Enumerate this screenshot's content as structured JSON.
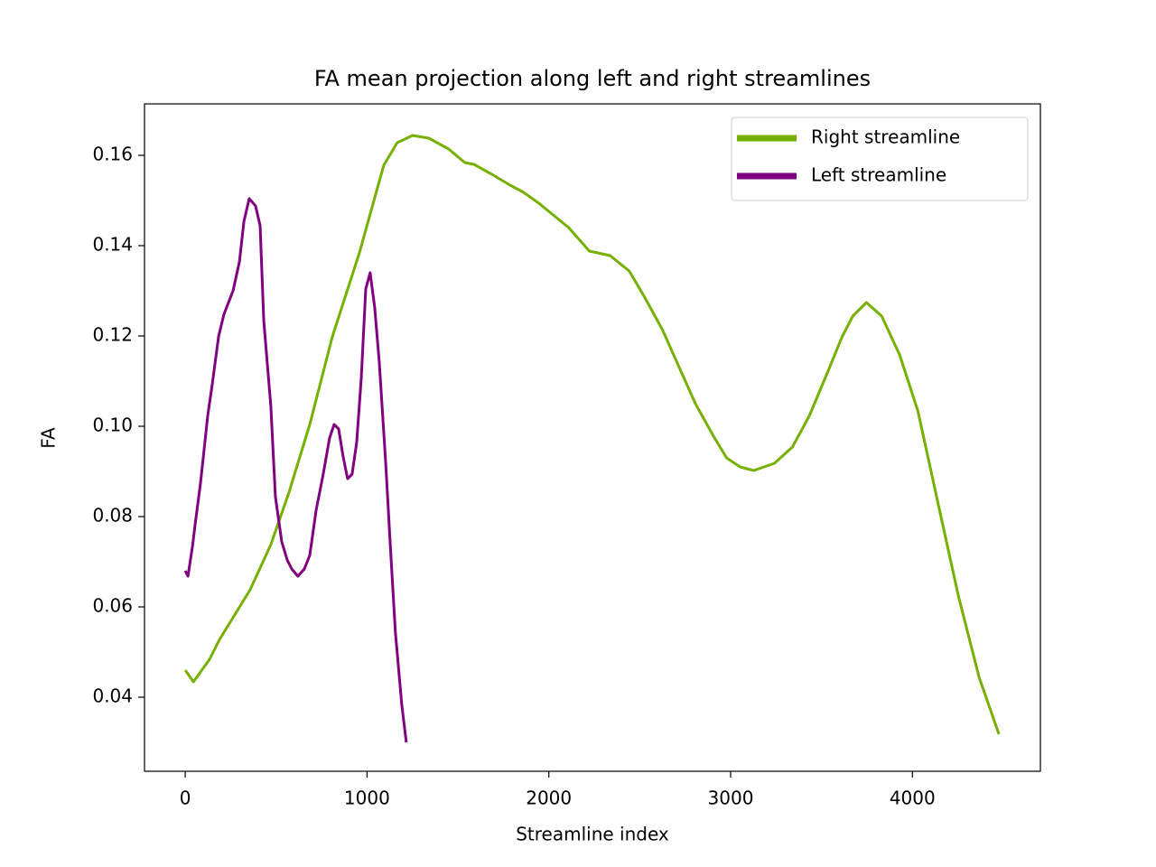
{
  "chart_data": {
    "type": "line",
    "title": "FA mean projection along left and right streamlines",
    "xlabel": "Streamline index",
    "ylabel": "FA",
    "xlim": [
      -224,
      4704
    ],
    "ylim": [
      0.0236,
      0.1714
    ],
    "xticks": [
      0,
      1000,
      2000,
      3000,
      4000
    ],
    "yticks": [
      0.04,
      0.06,
      0.08,
      {
        "value": 0.1,
        "label": "0.10"
      },
      0.12,
      0.14,
      0.16
    ],
    "grid": false,
    "legend": "upper right",
    "series": [
      {
        "name": "Right streamline",
        "color": "#76b000",
        "x": [
          0,
          45,
          134,
          189,
          357,
          471,
          571,
          685,
          809,
          958,
          1092,
          1166,
          1251,
          1340,
          1449,
          1538,
          1588,
          1687,
          1787,
          1861,
          1945,
          2109,
          2223,
          2337,
          2442,
          2521,
          2625,
          2680,
          2804,
          2903,
          2978,
          3052,
          3127,
          3241,
          3340,
          3434,
          3538,
          3613,
          3672,
          3747,
          3831,
          3930,
          4030,
          4144,
          4253,
          4367,
          4476
        ],
        "values": [
          0.046,
          0.0434,
          0.0484,
          0.0528,
          0.0638,
          0.0738,
          0.0854,
          0.1004,
          0.1198,
          0.1384,
          0.1578,
          0.1628,
          0.1644,
          0.1638,
          0.1614,
          0.1584,
          0.158,
          0.1558,
          0.1534,
          0.1518,
          0.1494,
          0.144,
          0.1388,
          0.1378,
          0.1344,
          0.129,
          0.1214,
          0.1164,
          0.1052,
          0.098,
          0.093,
          0.091,
          0.0902,
          0.0918,
          0.0954,
          0.1024,
          0.1124,
          0.1198,
          0.1244,
          0.1274,
          0.1244,
          0.1158,
          0.1034,
          0.0824,
          0.0624,
          0.0444,
          0.0318
        ]
      },
      {
        "name": "Left streamline",
        "color": "#800080",
        "x": [
          0,
          15,
          40,
          55,
          84,
          124,
          149,
          184,
          213,
          263,
          298,
          323,
          352,
          387,
          412,
          432,
          471,
          496,
          531,
          561,
          586,
          620,
          655,
          685,
          720,
          759,
          794,
          819,
          844,
          868,
          893,
          918,
          943,
          968,
          993,
          1017,
          1042,
          1067,
          1102,
          1127,
          1156,
          1191,
          1216
        ],
        "values": [
          0.068,
          0.0668,
          0.0734,
          0.0784,
          0.0874,
          0.1024,
          0.1094,
          0.12,
          0.1248,
          0.13,
          0.1364,
          0.1454,
          0.1504,
          0.1488,
          0.1444,
          0.1234,
          0.1044,
          0.0844,
          0.0744,
          0.0704,
          0.0684,
          0.0668,
          0.0684,
          0.0714,
          0.0814,
          0.0894,
          0.0974,
          0.1004,
          0.0994,
          0.0934,
          0.0884,
          0.0894,
          0.0964,
          0.1104,
          0.1304,
          0.134,
          0.1264,
          0.1144,
          0.0924,
          0.0744,
          0.0544,
          0.0384,
          0.03
        ]
      }
    ]
  }
}
